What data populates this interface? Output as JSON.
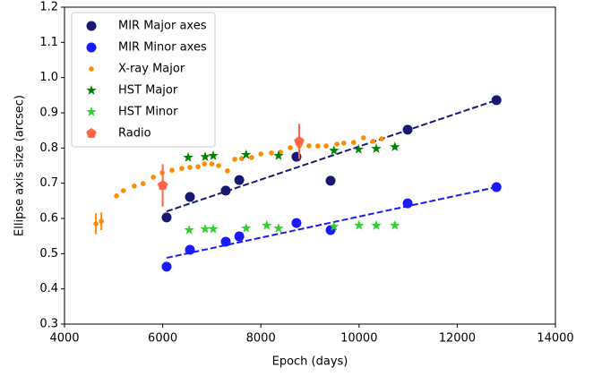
{
  "chart_data": {
    "type": "scatter",
    "xlabel": "Epoch (days)",
    "ylabel": "Ellipse axis size (arcsec)",
    "xlim": [
      4000,
      14000
    ],
    "ylim": [
      0.3,
      1.2
    ],
    "xticks": [
      4000,
      6000,
      8000,
      10000,
      12000,
      14000
    ],
    "yticks": [
      0.3,
      0.4,
      0.5,
      0.6,
      0.7,
      0.8,
      0.9,
      {
        "value": 1,
        "label": "1.0"
      },
      1.1,
      1.2
    ],
    "legend": "upper left",
    "series": [
      {
        "name": "MIR Major axes",
        "color": "#191970",
        "marker": "circle",
        "x": [
          6080,
          6555,
          7285,
          7560,
          8725,
          9420,
          10990,
          12800
        ],
        "values": [
          0.603,
          0.661,
          0.679,
          0.709,
          0.775,
          0.707,
          0.852,
          0.936
        ]
      },
      {
        "name": "MIR Minor axes",
        "color": "#1a1aff",
        "marker": "circle",
        "x": [
          6080,
          6555,
          7285,
          7560,
          8725,
          9420,
          10990,
          12800
        ],
        "values": [
          0.463,
          0.511,
          0.534,
          0.549,
          0.587,
          0.567,
          0.643,
          0.689
        ]
      },
      {
        "name": "X-ray Major",
        "color": "#ff8c00",
        "marker": "dot",
        "x": [
          4640,
          4750,
          5060,
          5200,
          5420,
          5600,
          5810,
          5990,
          6190,
          6390,
          6555,
          6720,
          6850,
          7000,
          7140,
          7320,
          7470,
          7610,
          7810,
          8000,
          8215,
          8400,
          8600,
          8780,
          8980,
          9160,
          9330,
          9550,
          9690,
          9890,
          10090,
          10280,
          10460
        ],
        "values": [
          0.585,
          0.592,
          0.664,
          0.679,
          0.692,
          0.699,
          0.717,
          0.73,
          0.737,
          0.742,
          0.745,
          0.747,
          0.755,
          0.755,
          0.75,
          0.735,
          0.768,
          0.77,
          0.773,
          0.783,
          0.786,
          0.788,
          0.801,
          0.806,
          0.806,
          0.806,
          0.806,
          0.811,
          0.814,
          0.816,
          0.829,
          0.819,
          0.826
        ],
        "errors": [
          0.03,
          0.025,
          null,
          null,
          null,
          null,
          null,
          null,
          null,
          null,
          null,
          null,
          null,
          null,
          null,
          null,
          null,
          null,
          null,
          null,
          null,
          null,
          null,
          null,
          null,
          null,
          null,
          null,
          null,
          null,
          null,
          null,
          null
        ]
      },
      {
        "name": "HST Major",
        "color": "#008000",
        "marker": "star",
        "x": [
          6520,
          6865,
          7030,
          7700,
          8360,
          9490,
          9990,
          10350,
          10730
        ],
        "values": [
          0.773,
          0.775,
          0.778,
          0.781,
          0.778,
          0.793,
          0.796,
          0.798,
          0.803
        ]
      },
      {
        "name": "HST Minor",
        "color": "#32cd32",
        "marker": "star",
        "x": [
          6540,
          6865,
          7030,
          7700,
          8120,
          8360,
          9490,
          10000,
          10350,
          10730
        ],
        "values": [
          0.567,
          0.57,
          0.57,
          0.572,
          0.58,
          0.572,
          0.577,
          0.58,
          0.58,
          0.58
        ]
      },
      {
        "name": "Radio",
        "color": "#ff6347",
        "marker": "pentagon",
        "x": [
          6000,
          8780
        ],
        "values": [
          0.694,
          0.819
        ],
        "errors": [
          0.06,
          0.05
        ]
      }
    ],
    "fit_lines": [
      {
        "color": "#191970",
        "x": [
          6080,
          12800
        ],
        "values": [
          0.62,
          0.936
        ]
      },
      {
        "color": "#1a1aff",
        "x": [
          6080,
          12800
        ],
        "values": [
          0.488,
          0.689
        ]
      }
    ]
  }
}
